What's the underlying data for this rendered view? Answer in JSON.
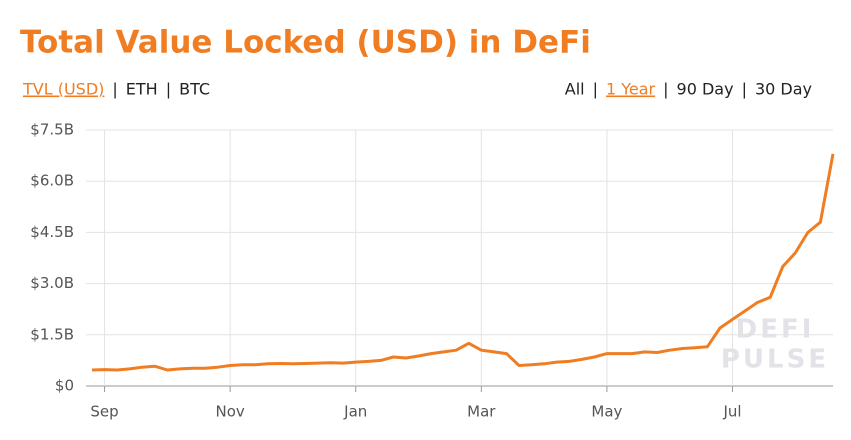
{
  "header": {
    "title": "Total Value Locked (USD) in DeFi",
    "separator": "|",
    "units": [
      "TVL (USD)",
      "ETH",
      "BTC"
    ],
    "ranges": [
      "All",
      "1 Year",
      "90 Day",
      "30 Day"
    ],
    "active_unit": "TVL (USD)",
    "active_range": "1 Year"
  },
  "watermark": [
    "DEFI",
    "PULSE"
  ],
  "chart_data": {
    "type": "line",
    "color": "#f07d22",
    "grid": true,
    "categories": [
      null,
      "Sep",
      null,
      null,
      null,
      null,
      null,
      null,
      null,
      null,
      null,
      "Nov",
      null,
      null,
      null,
      null,
      null,
      null,
      null,
      null,
      null,
      "Jan",
      null,
      null,
      null,
      null,
      null,
      null,
      null,
      null,
      null,
      "Mar",
      null,
      null,
      null,
      null,
      null,
      null,
      null,
      null,
      null,
      "May",
      null,
      null,
      null,
      null,
      null,
      null,
      null,
      null,
      null,
      "Jul",
      null,
      null,
      null,
      null,
      null,
      null,
      null,
      null
    ],
    "values": [
      0.47,
      0.48,
      0.47,
      0.5,
      0.55,
      0.58,
      0.47,
      0.5,
      0.52,
      0.52,
      0.55,
      0.6,
      0.62,
      0.62,
      0.65,
      0.66,
      0.65,
      0.66,
      0.67,
      0.68,
      0.67,
      0.7,
      0.72,
      0.75,
      0.85,
      0.82,
      0.88,
      0.95,
      1.0,
      1.05,
      1.25,
      1.05,
      1.0,
      0.95,
      0.6,
      0.62,
      0.65,
      0.7,
      0.72,
      0.78,
      0.85,
      0.95,
      0.95,
      0.95,
      1.0,
      0.98,
      1.05,
      1.1,
      1.12,
      1.15,
      1.7,
      1.95,
      2.2,
      2.45,
      2.6,
      3.5,
      3.9,
      4.5,
      4.8,
      6.8
    ],
    "ylim": [
      0,
      7.5
    ],
    "yticks": [
      {
        "value": 0,
        "label": "$0"
      },
      {
        "value": 1.5,
        "label": "$1.5B"
      },
      {
        "value": 3,
        "label": "$3.0B"
      },
      {
        "value": 4.5,
        "label": "$4.5B"
      },
      {
        "value": 6,
        "label": "$6.0B"
      },
      {
        "value": 7.5,
        "label": "$7.5B"
      }
    ]
  }
}
